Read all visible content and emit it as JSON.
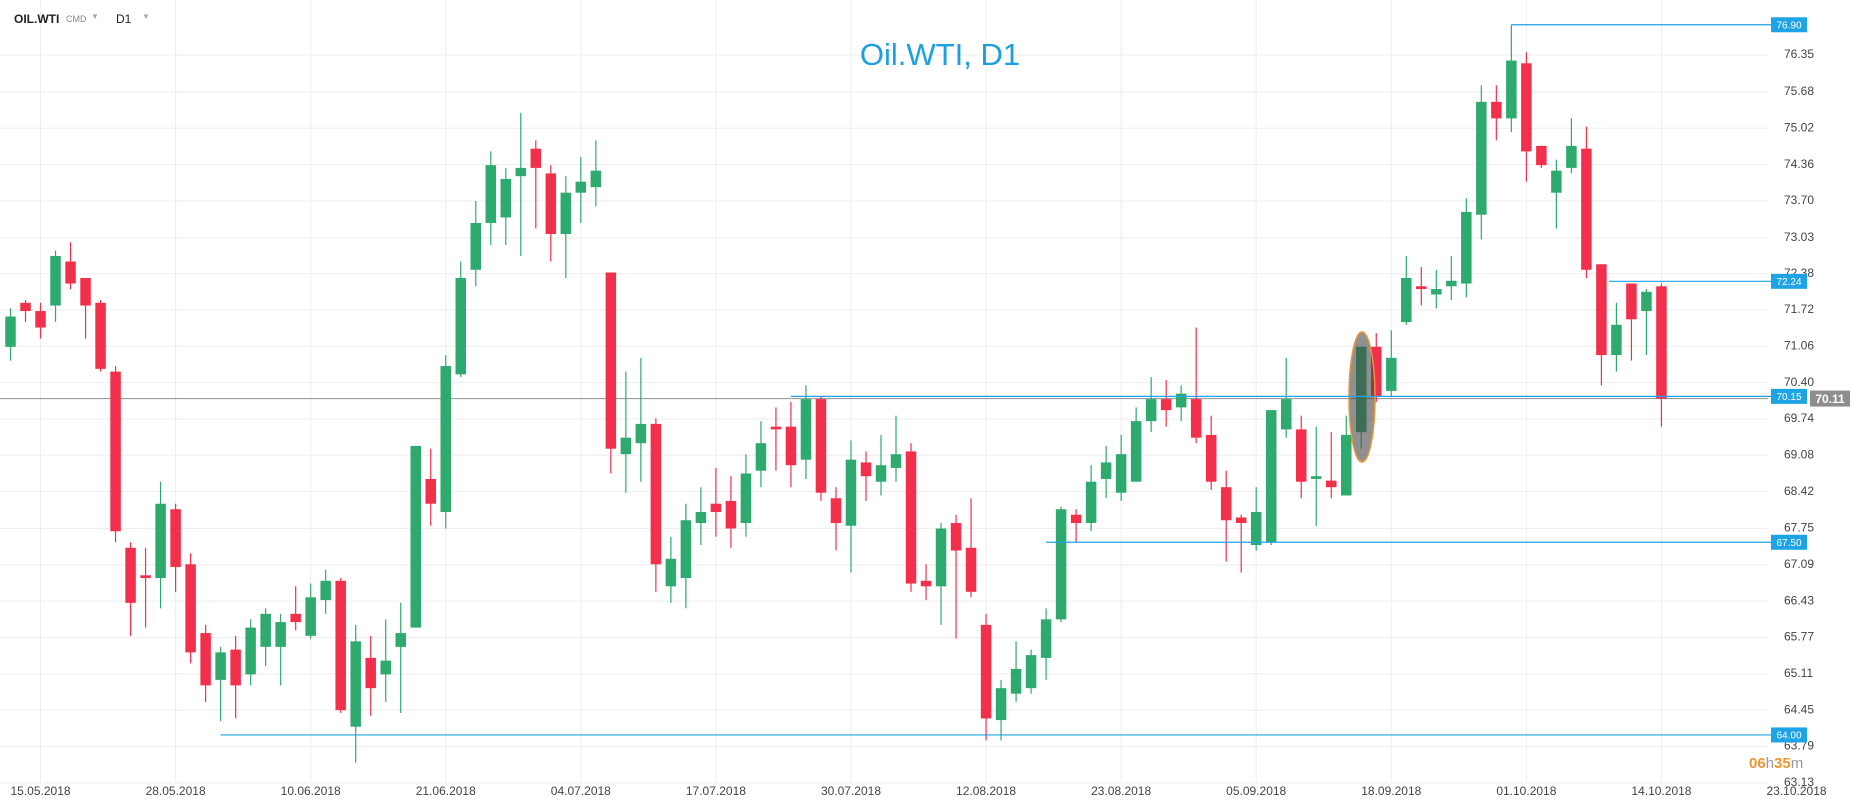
{
  "header": {
    "symbol": "OIL.WTI",
    "market": "CMD",
    "interval": "D1"
  },
  "timer": [
    "06",
    "h",
    "35",
    "m"
  ],
  "chart_data": {
    "type": "candlestick",
    "title": "Oil.WTI, D1",
    "up_color": "#2eaa6e",
    "down_color": "#f2304b",
    "grid": true,
    "open": [
      71.05,
      71.85,
      71.7,
      71.8,
      72.6,
      72.3,
      71.85,
      70.6,
      67.4,
      66.9,
      66.85,
      68.1,
      67.1,
      65.85,
      65.0,
      65.55,
      65.1,
      65.6,
      65.6,
      66.2,
      65.8,
      66.45,
      66.8,
      64.15,
      65.4,
      65.1,
      65.6,
      65.95,
      68.65,
      68.05,
      70.55,
      72.45,
      73.3,
      73.4,
      74.15,
      74.65,
      74.2,
      73.1,
      73.85,
      73.95,
      72.4,
      69.1,
      69.3,
      69.65,
      66.7,
      66.85,
      67.85,
      68.2,
      68.25,
      67.85,
      68.8,
      69.6,
      69.6,
      69.0,
      70.1,
      68.3,
      67.8,
      68.95,
      68.6,
      68.85,
      69.15,
      66.8,
      66.7,
      67.85,
      67.4,
      66.0,
      64.27,
      64.75,
      64.85,
      65.4,
      66.1,
      68.0,
      67.85,
      68.65,
      68.4,
      68.6,
      69.7,
      70.1,
      69.95,
      70.1,
      69.45,
      68.5,
      67.95,
      67.45,
      67.5,
      69.55,
      69.55,
      68.65,
      68.62,
      68.35,
      69.5,
      71.05,
      70.25,
      71.5,
      72.15,
      72.0,
      72.15,
      72.2,
      73.45,
      75.5,
      75.2,
      76.2,
      74.7,
      73.85,
      74.3,
      74.65,
      72.55,
      70.9,
      72.2,
      71.7,
      72.15
    ],
    "high": [
      71.75,
      71.9,
      71.85,
      72.8,
      72.95,
      72.3,
      71.9,
      70.7,
      67.5,
      67.4,
      68.6,
      68.2,
      67.3,
      66.0,
      65.6,
      65.8,
      66.1,
      66.3,
      66.2,
      66.7,
      66.75,
      67.0,
      66.85,
      66.0,
      65.8,
      66.1,
      66.4,
      69.25,
      69.2,
      70.9,
      72.6,
      73.7,
      74.6,
      74.3,
      75.3,
      74.8,
      74.35,
      74.15,
      74.5,
      74.8,
      72.4,
      70.6,
      70.85,
      69.75,
      67.6,
      68.2,
      68.5,
      68.85,
      68.7,
      69.1,
      69.7,
      69.95,
      70.05,
      70.35,
      70.15,
      68.5,
      69.35,
      69.15,
      69.45,
      69.8,
      69.3,
      67.1,
      67.85,
      68.0,
      68.3,
      66.2,
      65.0,
      65.7,
      65.55,
      66.3,
      68.15,
      68.1,
      68.9,
      69.25,
      69.45,
      69.95,
      70.5,
      70.45,
      70.35,
      71.4,
      69.8,
      68.8,
      68.0,
      68.5,
      69.9,
      70.85,
      69.8,
      69.6,
      69.5,
      69.8,
      71.05,
      71.3,
      71.35,
      72.7,
      72.5,
      72.45,
      72.7,
      73.75,
      75.8,
      75.8,
      76.9,
      76.4,
      74.7,
      74.45,
      75.2,
      75.05,
      72.55,
      71.85,
      72.2,
      72.1,
      72.2
    ],
    "low": [
      70.8,
      71.5,
      71.2,
      71.5,
      72.1,
      71.2,
      70.6,
      67.5,
      65.8,
      65.95,
      66.3,
      66.6,
      65.3,
      64.6,
      64.25,
      64.3,
      64.9,
      65.25,
      64.9,
      65.9,
      65.75,
      66.2,
      64.4,
      63.5,
      64.35,
      64.6,
      64.4,
      65.95,
      67.8,
      67.75,
      70.5,
      72.15,
      72.9,
      72.9,
      72.7,
      73.2,
      72.6,
      72.3,
      73.3,
      73.6,
      68.75,
      68.4,
      68.6,
      66.6,
      66.4,
      66.3,
      67.45,
      67.6,
      67.4,
      67.6,
      68.5,
      68.8,
      68.5,
      68.65,
      68.25,
      67.35,
      66.95,
      68.25,
      68.35,
      68.6,
      66.6,
      66.45,
      66.0,
      65.75,
      66.5,
      63.9,
      63.9,
      64.6,
      64.75,
      65.0,
      66.05,
      67.5,
      67.7,
      68.3,
      68.25,
      68.6,
      69.5,
      69.6,
      69.7,
      69.3,
      68.45,
      67.15,
      66.95,
      67.35,
      67.45,
      69.4,
      68.3,
      67.8,
      68.3,
      68.35,
      69.2,
      70.05,
      70.15,
      71.45,
      71.8,
      71.75,
      71.9,
      71.95,
      73.0,
      74.8,
      74.95,
      74.05,
      74.3,
      73.2,
      74.2,
      72.3,
      70.35,
      70.6,
      70.8,
      70.9,
      69.6
    ],
    "close": [
      71.6,
      71.7,
      71.4,
      72.7,
      72.2,
      71.8,
      70.65,
      67.7,
      66.4,
      66.85,
      68.2,
      67.05,
      65.5,
      64.9,
      65.5,
      64.9,
      65.95,
      66.2,
      66.05,
      66.05,
      66.5,
      66.8,
      64.45,
      65.7,
      64.85,
      65.35,
      65.85,
      69.25,
      68.2,
      70.7,
      72.3,
      73.3,
      74.35,
      74.1,
      74.3,
      74.3,
      73.1,
      73.85,
      74.05,
      74.25,
      69.2,
      69.4,
      69.65,
      67.1,
      67.2,
      67.9,
      68.05,
      68.05,
      67.75,
      68.75,
      69.3,
      69.55,
      68.9,
      70.1,
      68.4,
      67.85,
      69.0,
      68.7,
      68.9,
      69.1,
      66.75,
      66.7,
      67.75,
      67.35,
      66.6,
      64.3,
      64.85,
      65.2,
      65.45,
      66.1,
      68.1,
      67.85,
      68.6,
      68.95,
      69.1,
      69.7,
      70.1,
      69.9,
      70.2,
      69.4,
      68.6,
      67.9,
      67.85,
      68.05,
      69.9,
      70.1,
      68.6,
      68.7,
      68.5,
      69.45,
      71.05,
      70.15,
      70.85,
      72.3,
      72.1,
      72.1,
      72.25,
      73.5,
      75.5,
      75.2,
      76.25,
      74.6,
      74.35,
      74.25,
      74.7,
      72.45,
      70.9,
      71.45,
      71.55,
      72.05,
      70.11
    ],
    "xlim": [
      -0.7,
      117.1
    ],
    "xticks": [
      {
        "value": 2,
        "label": "15.05.2018"
      },
      {
        "value": 11,
        "label": "28.05.2018"
      },
      {
        "value": 20,
        "label": "10.06.2018"
      },
      {
        "value": 29,
        "label": "21.06.2018"
      },
      {
        "value": 38,
        "label": "04.07.2018"
      },
      {
        "value": 47,
        "label": "17.07.2018"
      },
      {
        "value": 56,
        "label": "30.07.2018"
      },
      {
        "value": 65,
        "label": "12.08.2018"
      },
      {
        "value": 74,
        "label": "23.08.2018"
      },
      {
        "value": 83,
        "label": "05.09.2018"
      },
      {
        "value": 92,
        "label": "18.09.2018"
      },
      {
        "value": 101,
        "label": "01.10.2018"
      },
      {
        "value": 110,
        "label": "14.10.2018"
      },
      {
        "value": 119,
        "label": "23.10.2018"
      }
    ],
    "ylim": [
      63.0,
      77.35
    ],
    "yticks": [
      76.35,
      75.68,
      75.02,
      74.36,
      {
        "value": 73.7,
        "label": "73.70"
      },
      73.03,
      72.38,
      71.72,
      71.06,
      {
        "value": 70.4,
        "label": "70.40"
      },
      69.74,
      69.08,
      68.42,
      67.75,
      67.09,
      66.43,
      65.77,
      65.11,
      64.45,
      63.79,
      63.13
    ],
    "levels": [
      {
        "value": 76.9,
        "label": "76.90",
        "from": 100
      },
      {
        "value": 72.24,
        "label": "72.24",
        "from": 106.5
      },
      {
        "value": 70.15,
        "label": "70.15",
        "from": 52
      },
      {
        "value": 67.5,
        "label": "67.50",
        "from": 69
      },
      {
        "value": 64.0,
        "label": "64.00",
        "from": 14
      }
    ],
    "level_color": "#1ea3e6",
    "last_price": 70.11,
    "last_price_color": "#8e8e8e"
  }
}
